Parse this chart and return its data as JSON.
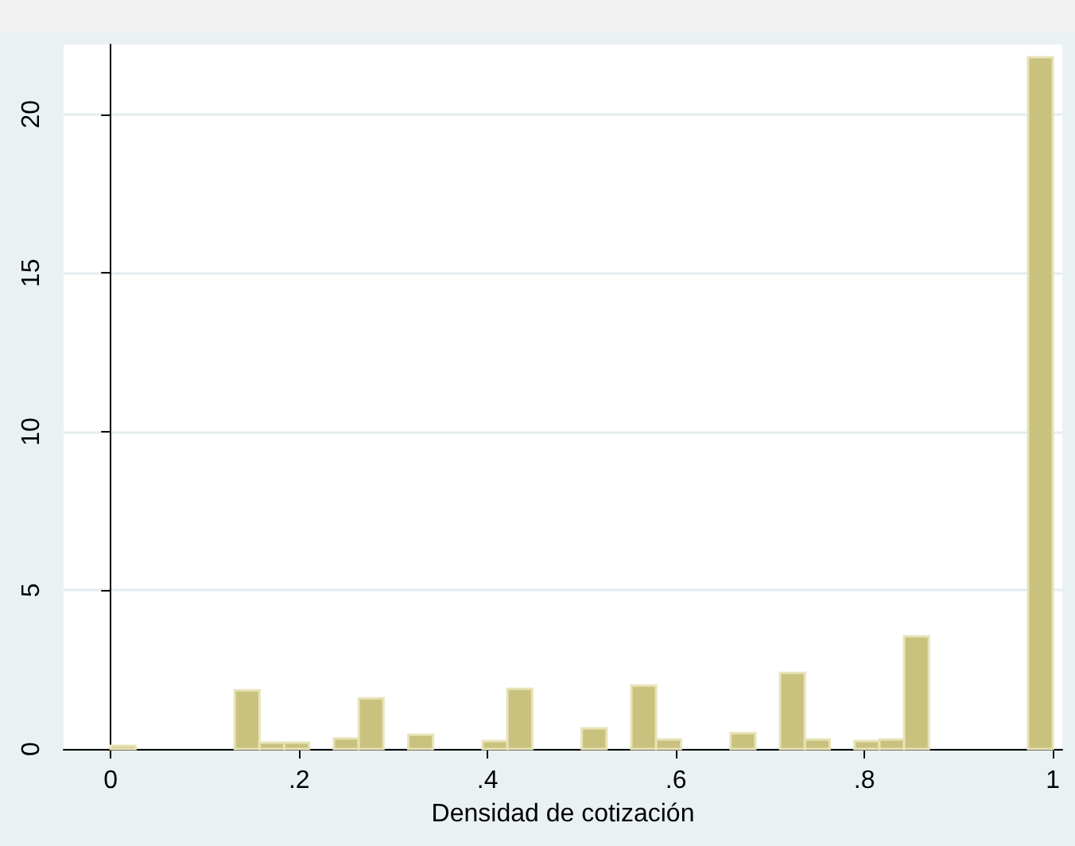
{
  "chart_data": {
    "type": "histogram",
    "xlabel": "Densidad de cotización",
    "bins": [
      0,
      0.0263,
      0.0526,
      0.0789,
      0.1053,
      0.1316,
      0.1579,
      0.1842,
      0.2105,
      0.2368,
      0.2632,
      0.2895,
      0.3158,
      0.3421,
      0.3684,
      0.3947,
      0.4211,
      0.4474,
      0.4737,
      0.5,
      0.5263,
      0.5526,
      0.5789,
      0.6053,
      0.6316,
      0.6579,
      0.6842,
      0.7105,
      0.7368,
      0.7632,
      0.7895,
      0.8158,
      0.8421,
      0.8684,
      0.8947,
      0.9211,
      0.9474,
      0.9737,
      1
    ],
    "values": [
      0.1,
      0,
      0,
      0,
      0,
      1.85,
      0.2,
      0.2,
      0,
      0.33,
      1.6,
      0,
      0.45,
      0,
      0,
      0.25,
      1.9,
      0,
      0,
      0.65,
      0,
      2.0,
      0.3,
      0,
      0,
      0.5,
      0,
      2.4,
      0.3,
      0,
      0.25,
      0.3,
      3.55,
      0,
      0,
      0,
      0,
      21.8
    ],
    "color": "#c9c27f",
    "xlim": [
      -0.05,
      1.01
    ],
    "ylim": [
      0,
      22.2
    ],
    "xticks": [
      0,
      {
        "value": 0.2,
        "label": ".2"
      },
      {
        "value": 0.4,
        "label": ".4"
      },
      {
        "value": 0.6,
        "label": ".6"
      },
      {
        "value": 0.8,
        "label": ".8"
      },
      1
    ],
    "yticks": [
      0,
      5,
      10,
      15,
      20
    ],
    "grid": "y"
  }
}
